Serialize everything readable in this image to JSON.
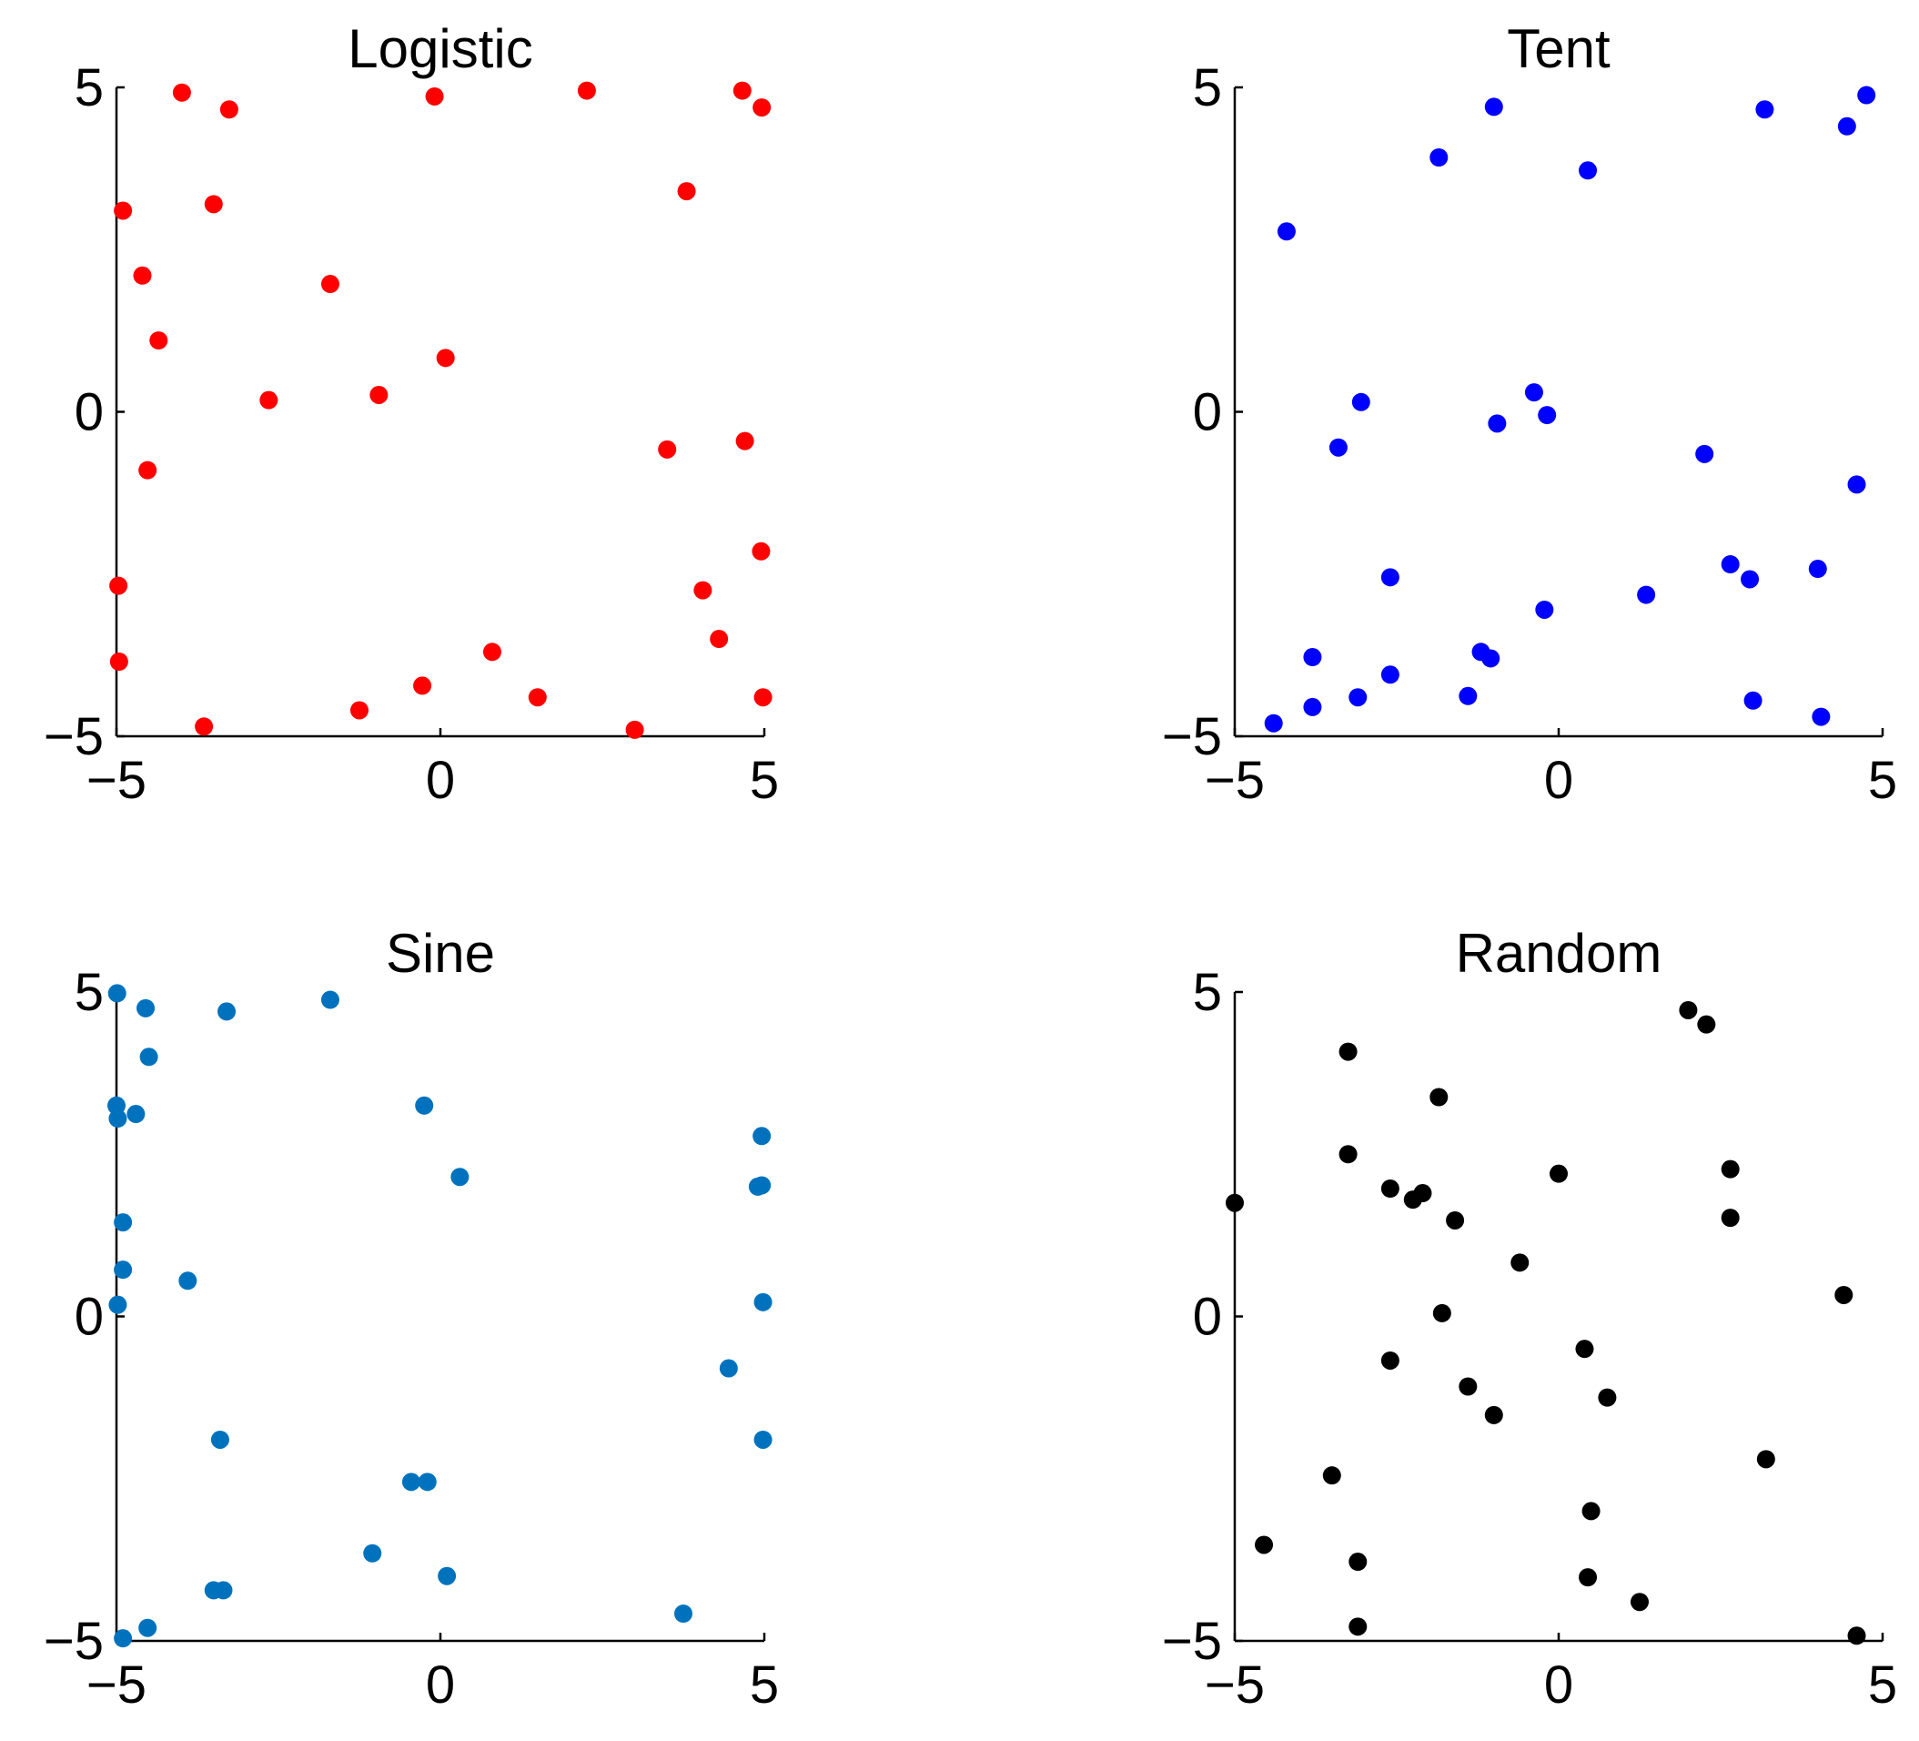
{
  "chart_data": [
    {
      "type": "scatter",
      "title": "Logistic",
      "xlabel": "",
      "ylabel": "",
      "xlim": [
        -5,
        5
      ],
      "ylim": [
        -5,
        5
      ],
      "xticks": [
        "-5",
        "0",
        "5"
      ],
      "yticks": [
        "-5",
        "0",
        "5"
      ],
      "grid": false,
      "color": "#ff0000",
      "points": [
        {
          "x": -3.99,
          "y": 4.92
        },
        {
          "x": -3.26,
          "y": 4.66
        },
        {
          "x": -0.09,
          "y": 4.86
        },
        {
          "x": 2.26,
          "y": 4.95
        },
        {
          "x": 4.66,
          "y": 4.95
        },
        {
          "x": 4.96,
          "y": 4.69
        },
        {
          "x": -4.9,
          "y": 3.1
        },
        {
          "x": -3.5,
          "y": 3.2
        },
        {
          "x": 3.8,
          "y": 3.4
        },
        {
          "x": -4.6,
          "y": 2.1
        },
        {
          "x": -1.7,
          "y": 1.97
        },
        {
          "x": -4.35,
          "y": 1.1
        },
        {
          "x": 0.08,
          "y": 0.83
        },
        {
          "x": -2.65,
          "y": 0.18
        },
        {
          "x": -0.95,
          "y": 0.26
        },
        {
          "x": -4.52,
          "y": -0.9
        },
        {
          "x": 3.5,
          "y": -0.58
        },
        {
          "x": 4.7,
          "y": -0.45
        },
        {
          "x": 4.95,
          "y": -2.15
        },
        {
          "x": -4.97,
          "y": -2.68
        },
        {
          "x": 4.05,
          "y": -2.75
        },
        {
          "x": 4.3,
          "y": -3.5
        },
        {
          "x": 0.8,
          "y": -3.7
        },
        {
          "x": -4.96,
          "y": -3.85
        },
        {
          "x": -0.28,
          "y": -4.22
        },
        {
          "x": 1.5,
          "y": -4.4
        },
        {
          "x": 4.98,
          "y": -4.4
        },
        {
          "x": -1.25,
          "y": -4.6
        },
        {
          "x": -3.65,
          "y": -4.85
        },
        {
          "x": 3.0,
          "y": -4.9
        }
      ]
    },
    {
      "type": "scatter",
      "title": "Tent",
      "xlabel": "",
      "ylabel": "",
      "xlim": [
        -5,
        5
      ],
      "ylim": [
        -5,
        5
      ],
      "xticks": [
        "-5",
        "0",
        "5"
      ],
      "yticks": [
        "-5",
        "0",
        "5"
      ],
      "grid": false,
      "color": "#0000ff",
      "points": [
        {
          "x": 4.75,
          "y": 4.88
        },
        {
          "x": 4.45,
          "y": 4.4
        },
        {
          "x": -1.0,
          "y": 4.7
        },
        {
          "x": 3.18,
          "y": 4.66
        },
        {
          "x": -1.85,
          "y": 3.92
        },
        {
          "x": 0.45,
          "y": 3.72
        },
        {
          "x": -4.2,
          "y": 2.78
        },
        {
          "x": -3.05,
          "y": 0.15
        },
        {
          "x": -0.38,
          "y": 0.3
        },
        {
          "x": -0.18,
          "y": -0.05
        },
        {
          "x": -0.95,
          "y": -0.18
        },
        {
          "x": -3.4,
          "y": -0.55
        },
        {
          "x": 2.25,
          "y": -0.65
        },
        {
          "x": 4.6,
          "y": -1.12
        },
        {
          "x": -2.6,
          "y": -2.55
        },
        {
          "x": 2.65,
          "y": -2.35
        },
        {
          "x": 2.95,
          "y": -2.58
        },
        {
          "x": 4.0,
          "y": -2.42
        },
        {
          "x": 1.35,
          "y": -2.82
        },
        {
          "x": -0.22,
          "y": -3.05
        },
        {
          "x": -1.2,
          "y": -3.7
        },
        {
          "x": -1.05,
          "y": -3.8
        },
        {
          "x": -3.8,
          "y": -3.78
        },
        {
          "x": -2.6,
          "y": -4.05
        },
        {
          "x": -1.4,
          "y": -4.38
        },
        {
          "x": -3.1,
          "y": -4.4
        },
        {
          "x": -3.8,
          "y": -4.55
        },
        {
          "x": 3.0,
          "y": -4.45
        },
        {
          "x": 4.05,
          "y": -4.7
        },
        {
          "x": -4.4,
          "y": -4.8
        }
      ]
    },
    {
      "type": "scatter",
      "title": "Sine",
      "xlabel": "",
      "ylabel": "",
      "xlim": [
        -5,
        5
      ],
      "ylim": [
        -5,
        5
      ],
      "xticks": [
        "-5",
        "0",
        "5"
      ],
      "yticks": [
        "-5",
        "0",
        "5"
      ],
      "grid": false,
      "color": "#0072bd",
      "points": [
        {
          "x": -4.99,
          "y": 4.98
        },
        {
          "x": -4.55,
          "y": 4.75
        },
        {
          "x": -3.3,
          "y": 4.7
        },
        {
          "x": -1.7,
          "y": 4.88
        },
        {
          "x": -4.5,
          "y": 4.0
        },
        {
          "x": -5.0,
          "y": 3.25
        },
        {
          "x": -4.98,
          "y": 3.05
        },
        {
          "x": -4.7,
          "y": 3.12
        },
        {
          "x": -0.25,
          "y": 3.25
        },
        {
          "x": 4.96,
          "y": 2.78
        },
        {
          "x": 0.3,
          "y": 2.15
        },
        {
          "x": 4.9,
          "y": 2.0
        },
        {
          "x": 4.96,
          "y": 2.02
        },
        {
          "x": -4.9,
          "y": 1.45
        },
        {
          "x": -4.9,
          "y": 0.72
        },
        {
          "x": -3.9,
          "y": 0.55
        },
        {
          "x": -4.98,
          "y": 0.18
        },
        {
          "x": 4.98,
          "y": 0.22
        },
        {
          "x": 4.45,
          "y": -0.8
        },
        {
          "x": -3.4,
          "y": -1.9
        },
        {
          "x": 4.98,
          "y": -1.9
        },
        {
          "x": -0.45,
          "y": -2.55
        },
        {
          "x": -0.2,
          "y": -2.55
        },
        {
          "x": -1.05,
          "y": -3.65
        },
        {
          "x": 0.1,
          "y": -4.0
        },
        {
          "x": -3.5,
          "y": -4.22
        },
        {
          "x": -3.35,
          "y": -4.22
        },
        {
          "x": 3.75,
          "y": -4.58
        },
        {
          "x": -4.52,
          "y": -4.8
        },
        {
          "x": -4.9,
          "y": -4.96
        }
      ]
    },
    {
      "type": "scatter",
      "title": "Random",
      "xlabel": "",
      "ylabel": "",
      "xlim": [
        -5,
        5
      ],
      "ylim": [
        -5,
        5
      ],
      "xticks": [
        "-5",
        "0",
        "5"
      ],
      "yticks": [
        "-5",
        "0",
        "5"
      ],
      "grid": false,
      "color": "#000000",
      "points": [
        {
          "x": 2.0,
          "y": 4.72
        },
        {
          "x": 2.28,
          "y": 4.5
        },
        {
          "x": -3.25,
          "y": 4.08
        },
        {
          "x": -1.85,
          "y": 3.38
        },
        {
          "x": -3.25,
          "y": 2.5
        },
        {
          "x": 0.0,
          "y": 2.2
        },
        {
          "x": 2.65,
          "y": 2.27
        },
        {
          "x": -2.6,
          "y": 1.97
        },
        {
          "x": -2.25,
          "y": 1.8
        },
        {
          "x": -2.1,
          "y": 1.9
        },
        {
          "x": -1.6,
          "y": 1.48
        },
        {
          "x": 2.65,
          "y": 1.52
        },
        {
          "x": -5.0,
          "y": 1.75
        },
        {
          "x": -0.6,
          "y": 0.83
        },
        {
          "x": 4.4,
          "y": 0.33
        },
        {
          "x": -1.8,
          "y": 0.05
        },
        {
          "x": -2.6,
          "y": -0.68
        },
        {
          "x": 0.4,
          "y": -0.5
        },
        {
          "x": -1.4,
          "y": -1.08
        },
        {
          "x": 0.75,
          "y": -1.25
        },
        {
          "x": -1.0,
          "y": -1.52
        },
        {
          "x": 3.2,
          "y": -2.2
        },
        {
          "x": -3.5,
          "y": -2.45
        },
        {
          "x": 0.5,
          "y": -3.0
        },
        {
          "x": -4.55,
          "y": -3.52
        },
        {
          "x": -3.1,
          "y": -3.78
        },
        {
          "x": 0.45,
          "y": -4.02
        },
        {
          "x": 1.25,
          "y": -4.4
        },
        {
          "x": -3.1,
          "y": -4.78
        },
        {
          "x": 4.6,
          "y": -4.92
        }
      ]
    }
  ]
}
